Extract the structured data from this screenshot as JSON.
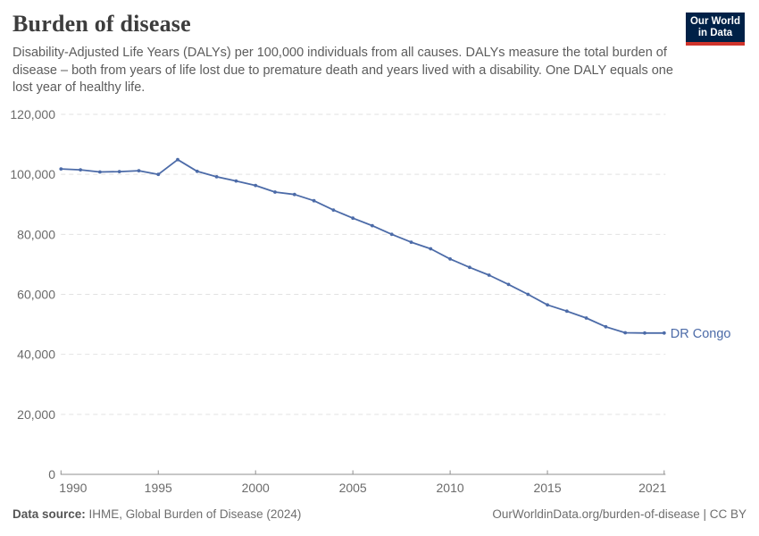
{
  "header": {
    "title": "Burden of disease",
    "subtitle": "Disability-Adjusted Life Years (DALYs) per 100,000 individuals from all causes. DALYs measure the total burden of disease – both from years of life lost due to premature death and years lived with a disability. One DALY equals one lost year of healthy life.",
    "logo": {
      "line1": "Our World",
      "line2": "in Data"
    }
  },
  "footer": {
    "source_label": "Data source:",
    "source_value": "IHME, Global Burden of Disease (2024)",
    "attribution": "OurWorldinData.org/burden-of-disease | CC BY"
  },
  "colors": {
    "line": "#4c6ba8",
    "logo_navy": "#002147",
    "logo_red": "#d0342c",
    "grid": "#e2e2e2",
    "axis": "#8f8f8f",
    "tick_label": "#6b6b6b"
  },
  "chart_data": {
    "type": "line",
    "title": "Burden of disease",
    "xlabel": "",
    "ylabel": "DALYs per 100,000 individuals",
    "x": [
      1990,
      1991,
      1992,
      1993,
      1994,
      1995,
      1996,
      1997,
      1998,
      1999,
      2000,
      2001,
      2002,
      2003,
      2004,
      2005,
      2006,
      2007,
      2008,
      2009,
      2010,
      2011,
      2012,
      2013,
      2014,
      2015,
      2016,
      2017,
      2018,
      2019,
      2020,
      2021
    ],
    "series": [
      {
        "name": "DR Congo",
        "color": "#4c6ba8",
        "values": [
          101800,
          101500,
          100800,
          100900,
          101200,
          100000,
          104900,
          101000,
          99200,
          97800,
          96300,
          94100,
          93300,
          91200,
          88100,
          85400,
          82900,
          80000,
          77400,
          75200,
          71800,
          69000,
          66400,
          63300,
          60000,
          56500,
          54400,
          52100,
          49200,
          47200,
          47100,
          47100
        ]
      }
    ],
    "xticks": [
      1990,
      1995,
      2000,
      2005,
      2010,
      2015,
      2021
    ],
    "ylim": [
      0,
      120000
    ],
    "ytick_step": 20000,
    "grid": "horizontal-dashed",
    "legend": "end-of-line-label"
  }
}
